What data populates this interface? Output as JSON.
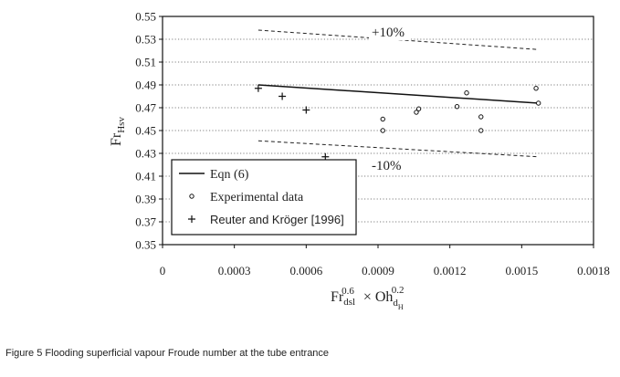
{
  "figure": {
    "caption": "Figure 5  Flooding superficial vapour Froude number at the tube entrance"
  },
  "chart_data": {
    "type": "scatter",
    "xlabel": "Fr_dsl^0.6 × Oh_dH^0.2",
    "ylabel": "Fr_Hsv",
    "xlim": [
      0,
      0.0018
    ],
    "ylim": [
      0.35,
      0.55
    ],
    "x_ticks": [
      "0",
      "0.0003",
      "0.0006",
      "0.0009",
      "0.0012",
      "0.0015",
      "0.0018"
    ],
    "y_ticks": [
      "0.35",
      "0.37",
      "0.39",
      "0.41",
      "0.43",
      "0.45",
      "0.47",
      "0.49",
      "0.51",
      "0.53",
      "0.55"
    ],
    "grid": true,
    "legend_position": "bottom-left",
    "series": [
      {
        "name": "Eqn (6)",
        "style": "solid-line",
        "points": [
          [
            0.0004,
            0.49
          ],
          [
            0.00157,
            0.474
          ]
        ]
      },
      {
        "name": "Experimental data",
        "style": "open-circle",
        "points": [
          [
            0.00092,
            0.46
          ],
          [
            0.00092,
            0.45
          ],
          [
            0.00106,
            0.466
          ],
          [
            0.00107,
            0.469
          ],
          [
            0.00123,
            0.471
          ],
          [
            0.00127,
            0.483
          ],
          [
            0.00133,
            0.462
          ],
          [
            0.00133,
            0.45
          ],
          [
            0.00156,
            0.487
          ],
          [
            0.00157,
            0.474
          ]
        ]
      },
      {
        "name": "Reuter and Kröger [1996]",
        "style": "plus",
        "points": [
          [
            0.0004,
            0.487
          ],
          [
            0.0005,
            0.48
          ],
          [
            0.0006,
            0.468
          ],
          [
            0.00068,
            0.427
          ]
        ]
      }
    ],
    "bands": [
      {
        "label": "+10%",
        "style": "dashed",
        "points": [
          [
            0.0004,
            0.538
          ],
          [
            0.00157,
            0.521
          ]
        ]
      },
      {
        "label": "-10%",
        "style": "dashed",
        "points": [
          [
            0.0004,
            0.441
          ],
          [
            0.00157,
            0.427
          ]
        ]
      }
    ]
  }
}
